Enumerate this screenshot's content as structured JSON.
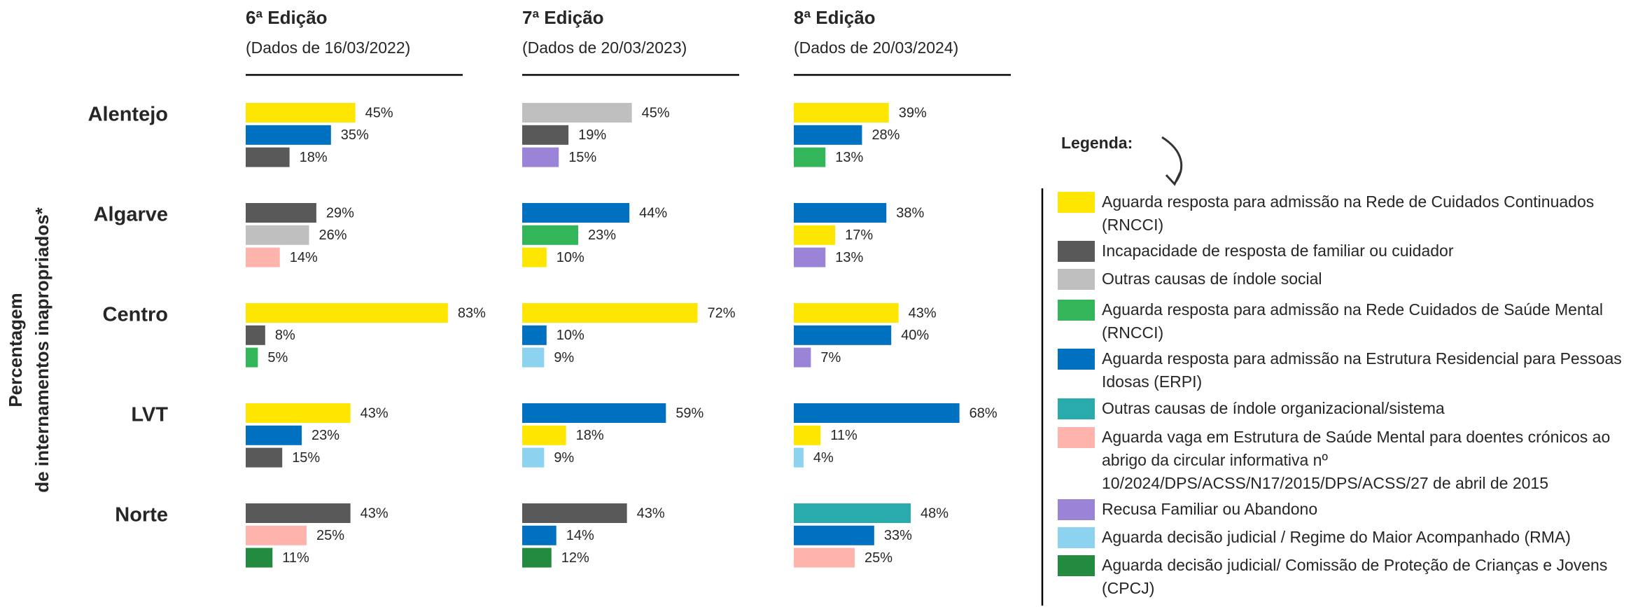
{
  "chart_data": {
    "type": "bar",
    "orientation": "horizontal",
    "y_axis_label": [
      "Percentagem",
      "de internamentos inapropriados*"
    ],
    "regions": [
      "Alentejo",
      "Algarve",
      "Centro",
      "LVT",
      "Norte"
    ],
    "legend_title": "Legenda:",
    "causes": [
      {
        "name": "Aguarda resposta para admissão na Rede de Cuidados Continuados (RNCCI)",
        "color": "#ffe600"
      },
      {
        "name": "Incapacidade de resposta de familiar ou cuidador",
        "color": "#595959"
      },
      {
        "name": "Outras causas de índole social",
        "color": "#bfbfbf"
      },
      {
        "name": "Aguarda resposta para admissão na Rede Cuidados de Saúde Mental (RNCCI)",
        "color": "#33b55a"
      },
      {
        "name": "Aguarda resposta para admissão na Estrutura Residencial para Pessoas Idosas (ERPI)",
        "color": "#0070c0"
      },
      {
        "name": "Outras causas de índole organizacional/sistema",
        "color": "#2aabab"
      },
      {
        "name": "Aguarda vaga em Estrutura de Saúde Mental para doentes crónicos ao abrigo da circular informativa nº 10/2024/DPS/ACSS/N17/2015/DPS/ACSS/27 de abril de 2015",
        "color": "#ffb3ad"
      },
      {
        "name": "Recusa Familiar ou Abandono",
        "color": "#9b84d8"
      },
      {
        "name": "Aguarda decisão judicial / Regime do Maior Acompanhado (RMA)",
        "color": "#8dd3f0"
      },
      {
        "name": "Aguarda decisão judicial/ Comissão de Proteção de Crianças e Jovens (CPCJ)",
        "color": "#228b3f"
      }
    ],
    "editions": [
      {
        "title": "6ª Edição",
        "subtitle": "(Dados de 16/03/2022)",
        "regions": [
          {
            "bars": [
              {
                "cause": 0,
                "value": 45,
                "value_label": "45%"
              },
              {
                "cause": 4,
                "value": 35,
                "value_label": "35%"
              },
              {
                "cause": 1,
                "value": 18,
                "value_label": "18%"
              }
            ]
          },
          {
            "bars": [
              {
                "cause": 1,
                "value": 29,
                "value_label": "29%"
              },
              {
                "cause": 2,
                "value": 26,
                "value_label": "26%"
              },
              {
                "cause": 6,
                "value": 14,
                "value_label": "14%"
              }
            ]
          },
          {
            "bars": [
              {
                "cause": 0,
                "value": 83,
                "value_label": "83%"
              },
              {
                "cause": 1,
                "value": 8,
                "value_label": "8%"
              },
              {
                "cause": 3,
                "value": 5,
                "value_label": "5%"
              }
            ]
          },
          {
            "bars": [
              {
                "cause": 0,
                "value": 43,
                "value_label": "43%"
              },
              {
                "cause": 4,
                "value": 23,
                "value_label": "23%"
              },
              {
                "cause": 1,
                "value": 15,
                "value_label": "15%"
              }
            ]
          },
          {
            "bars": [
              {
                "cause": 1,
                "value": 43,
                "value_label": "43%"
              },
              {
                "cause": 6,
                "value": 25,
                "value_label": "25%"
              },
              {
                "cause": 9,
                "value": 11,
                "value_label": "11%"
              }
            ]
          }
        ]
      },
      {
        "title": "7ª Edição",
        "subtitle": "(Dados de 20/03/2023)",
        "regions": [
          {
            "bars": [
              {
                "cause": 2,
                "value": 45,
                "value_label": "45%"
              },
              {
                "cause": 1,
                "value": 19,
                "value_label": "19%"
              },
              {
                "cause": 7,
                "value": 15,
                "value_label": "15%"
              }
            ]
          },
          {
            "bars": [
              {
                "cause": 4,
                "value": 44,
                "value_label": "44%"
              },
              {
                "cause": 3,
                "value": 23,
                "value_label": "23%"
              },
              {
                "cause": 0,
                "value": 10,
                "value_label": "10%"
              }
            ]
          },
          {
            "bars": [
              {
                "cause": 0,
                "value": 72,
                "value_label": "72%"
              },
              {
                "cause": 4,
                "value": 10,
                "value_label": "10%"
              },
              {
                "cause": 8,
                "value": 9,
                "value_label": "9%"
              }
            ]
          },
          {
            "bars": [
              {
                "cause": 4,
                "value": 59,
                "value_label": "59%"
              },
              {
                "cause": 0,
                "value": 18,
                "value_label": "18%"
              },
              {
                "cause": 8,
                "value": 9,
                "value_label": "9%"
              }
            ]
          },
          {
            "bars": [
              {
                "cause": 1,
                "value": 43,
                "value_label": "43%"
              },
              {
                "cause": 4,
                "value": 14,
                "value_label": "14%"
              },
              {
                "cause": 9,
                "value": 12,
                "value_label": "12%"
              }
            ]
          }
        ]
      },
      {
        "title": "8ª Edição",
        "subtitle": "(Dados de 20/03/2024)",
        "regions": [
          {
            "bars": [
              {
                "cause": 0,
                "value": 39,
                "value_label": "39%"
              },
              {
                "cause": 4,
                "value": 28,
                "value_label": "28%"
              },
              {
                "cause": 3,
                "value": 13,
                "value_label": "13%"
              }
            ]
          },
          {
            "bars": [
              {
                "cause": 4,
                "value": 38,
                "value_label": "38%"
              },
              {
                "cause": 0,
                "value": 17,
                "value_label": "17%"
              },
              {
                "cause": 7,
                "value": 13,
                "value_label": "13%"
              }
            ]
          },
          {
            "bars": [
              {
                "cause": 0,
                "value": 43,
                "value_label": "43%"
              },
              {
                "cause": 4,
                "value": 40,
                "value_label": "40%"
              },
              {
                "cause": 7,
                "value": 7,
                "value_label": "7%"
              }
            ]
          },
          {
            "bars": [
              {
                "cause": 4,
                "value": 68,
                "value_label": "68%"
              },
              {
                "cause": 0,
                "value": 11,
                "value_label": "11%"
              },
              {
                "cause": 8,
                "value": 4,
                "value_label": "4%"
              }
            ]
          },
          {
            "bars": [
              {
                "cause": 5,
                "value": 48,
                "value_label": "48%"
              },
              {
                "cause": 4,
                "value": 33,
                "value_label": "33%"
              },
              {
                "cause": 6,
                "value": 25,
                "value_label": "25%"
              }
            ]
          }
        ]
      }
    ]
  }
}
